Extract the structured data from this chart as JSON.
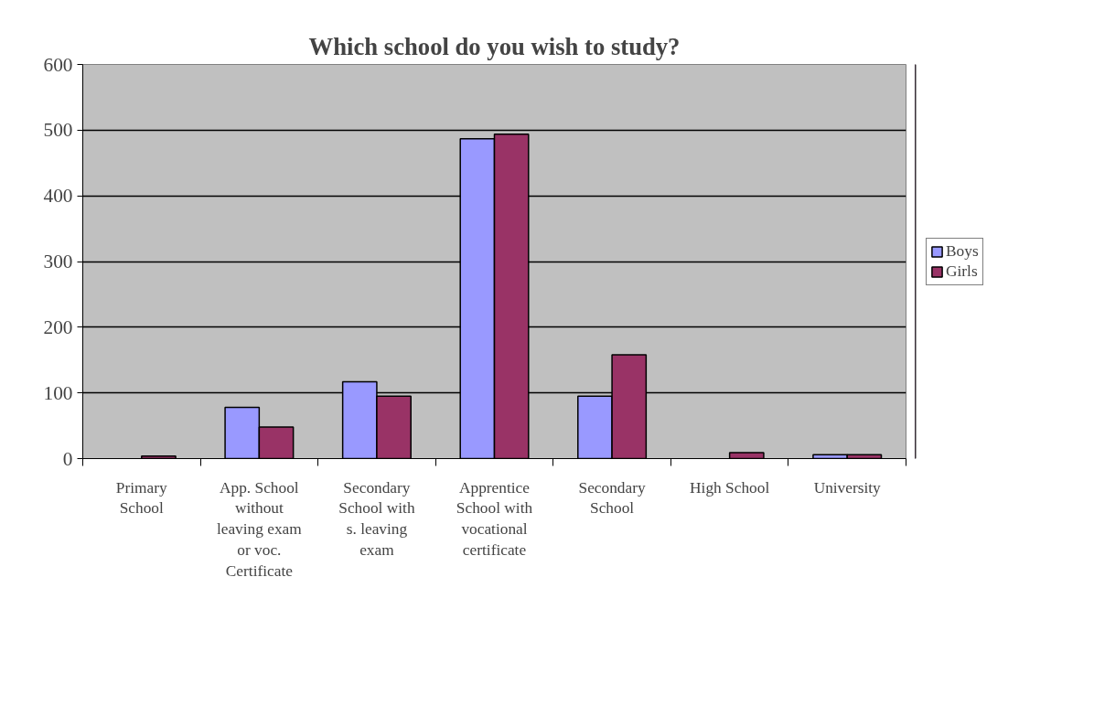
{
  "chart_data": {
    "type": "bar",
    "title": "Which school do you wish to study?",
    "categories": [
      "Primary School",
      "App. School without leaving exam or voc. Certificate",
      "Secondary School with s. leaving exam",
      "Apprentice School with vocational certificate",
      "Secondary School",
      "High School",
      "University"
    ],
    "series": [
      {
        "name": "Boys",
        "color": "#9999ff",
        "values": [
          null,
          78,
          117,
          487,
          95,
          null,
          6
        ]
      },
      {
        "name": "Girls",
        "color": "#993366",
        "values": [
          4,
          48,
          95,
          494,
          158,
          9,
          6
        ]
      }
    ],
    "ylim": [
      0,
      600
    ],
    "yticks": [
      0,
      100,
      200,
      300,
      400,
      500,
      600
    ],
    "grid": "y",
    "legend": "right"
  }
}
